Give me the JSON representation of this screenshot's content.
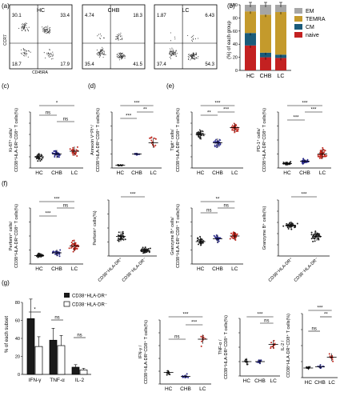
{
  "panels": {
    "a": {
      "letter": "(a)",
      "yaxis": "CCR7",
      "xaxis": "CD45RA",
      "plots": [
        {
          "label": "HC",
          "q": [
            "30.1",
            "33.4",
            "18.7",
            "17.9"
          ]
        },
        {
          "label": "CHB",
          "q": [
            "4.74",
            "18.3",
            "35.4",
            "41.5"
          ]
        },
        {
          "label": "LC",
          "q": [
            "1.87",
            "6.43",
            "37.4",
            "54.3"
          ]
        }
      ]
    },
    "b": {
      "letter": "(b)",
      "ylabel": "(%) of each group",
      "yticks": [
        "0",
        "20",
        "40",
        "60",
        "80",
        "100"
      ],
      "legend": [
        {
          "name": "EM",
          "color": "#a6a6a6"
        },
        {
          "name": "TEMRA",
          "color": "#c49a2c"
        },
        {
          "name": "CM",
          "color": "#1b5b7a"
        },
        {
          "name": "naive",
          "color": "#c32121"
        }
      ],
      "categories": [
        "HC",
        "CHB",
        "LC"
      ]
    },
    "c": {
      "letter": "(c)",
      "ylabel1": "Ki-67⁺ cells/",
      "ylabel2": "CD38⁺HLA-DR⁺CD8⁺ T cells(%)",
      "cats": [
        "HC",
        "CHB",
        "LC"
      ],
      "sig": [
        "*",
        "ns",
        "ns"
      ]
    },
    "d": {
      "letter": "(d)",
      "ylabel1": "Annexin V⁺PI⁺/",
      "ylabel2": "CD38⁺HLA-DR⁺CD8⁺ T cells(%)",
      "cats": [
        "HC",
        "CHB",
        "LC"
      ],
      "sig": [
        "***",
        "***",
        "**"
      ]
    },
    "e1": {
      "letter": "(e)",
      "ylabel1": "Tigit⁺ cells/",
      "ylabel2": "CD38⁺HLA-DR⁺CD8⁺ T cells(%)",
      "cats": [
        "HC",
        "CHB",
        "LC"
      ],
      "sig": [
        "***",
        "**",
        "***"
      ]
    },
    "e2": {
      "ylabel1": "PD-1⁺ cells/",
      "ylabel2": "CD38⁺HLA-DR⁺CD8⁺ T cells(%)",
      "cats": [
        "HC",
        "CHB",
        "LC"
      ],
      "sig": [
        "***",
        "***",
        "***"
      ]
    },
    "f1": {
      "letter": "(f)",
      "ylabel1": "Perforin⁺ cells/",
      "ylabel2": "CD38⁺HLA-DR⁺CD8⁺ T cells(%)",
      "cats": [
        "HC",
        "CHB",
        "LC"
      ],
      "sig": [
        "***",
        "ns",
        "***"
      ]
    },
    "f2": {
      "ylabel1": "Perforin⁺ cells(%)",
      "cats": [
        "CD38⁺HLA-DR⁺",
        "CD38⁻HLA-DR⁻"
      ],
      "sig": [
        "***"
      ]
    },
    "f3": {
      "ylabel1": "Granzyme B⁺ cells/",
      "ylabel2": "CD38⁺HLA-DR⁺CD8⁺ T cells(%)",
      "cats": [
        "HC",
        "CHB",
        "LC"
      ],
      "sig": [
        "**",
        "ns",
        "ns"
      ]
    },
    "f4": {
      "ylabel1": "Granzyme B⁺ cells(%)",
      "cats": [
        "CD38⁺HLA-DR⁺",
        "CD38⁻HLA-DR⁻"
      ],
      "sig": [
        "***"
      ]
    },
    "g1": {
      "letter": "(g)",
      "ylabel": "% of each subset",
      "yticks": [
        "0",
        "20",
        "40",
        "60",
        "80"
      ],
      "cats": [
        "IFN-γ",
        "TNF-α",
        "IL-2"
      ],
      "legend": [
        "CD38⁺HLA-DR⁺",
        "CD38⁻HLA-DR⁻"
      ],
      "sig": [
        "*",
        "ns",
        "ns"
      ]
    },
    "g2": {
      "ylabel1": "IFN-γ /",
      "ylabel2": "CD38⁺HLA-DR⁺CD8⁺ T cells(%)",
      "cats": [
        "HC",
        "CHB",
        "LC"
      ],
      "sig": [
        "***",
        "ns",
        "***"
      ]
    },
    "g3": {
      "ylabel1": "TNF-α /",
      "ylabel2": "CD38⁺HLA-DR⁺CD8⁺ T cells(%)",
      "cats": [
        "HC",
        "CHB",
        "LC"
      ],
      "sig": [
        "***",
        "ns"
      ]
    },
    "g4": {
      "ylabel1": "IL-2 /",
      "ylabel2": "CD38⁺HLA-DR⁺CD8⁺ T cells(%)",
      "cats": [
        "HC",
        "CHB",
        "LC"
      ],
      "sig": [
        "***",
        "ns",
        "**"
      ]
    }
  },
  "chart_data": [
    {
      "type": "bar",
      "title": "",
      "ylabel": "(%) of each group",
      "ylim": [
        0,
        100
      ],
      "categories": [
        "HC",
        "CHB",
        "LC"
      ],
      "series": [
        {
          "name": "naive",
          "values": [
            38,
            20,
            19
          ]
        },
        {
          "name": "CM",
          "values": [
            19,
            7,
            5
          ]
        },
        {
          "name": "TEMRA",
          "values": [
            33,
            58,
            65
          ]
        },
        {
          "name": "EM",
          "values": [
            10,
            15,
            11
          ]
        }
      ]
    },
    {
      "type": "bar",
      "ylabel": "% of each subset",
      "ylim": [
        0,
        80
      ],
      "categories": [
        "IFN-γ",
        "TNF-α",
        "IL-2"
      ],
      "series": [
        {
          "name": "CD38⁺HLA-DR⁺",
          "values": [
            62,
            38,
            8
          ]
        },
        {
          "name": "CD38⁻HLA-DR⁻",
          "values": [
            31,
            32,
            5
          ]
        }
      ]
    }
  ]
}
